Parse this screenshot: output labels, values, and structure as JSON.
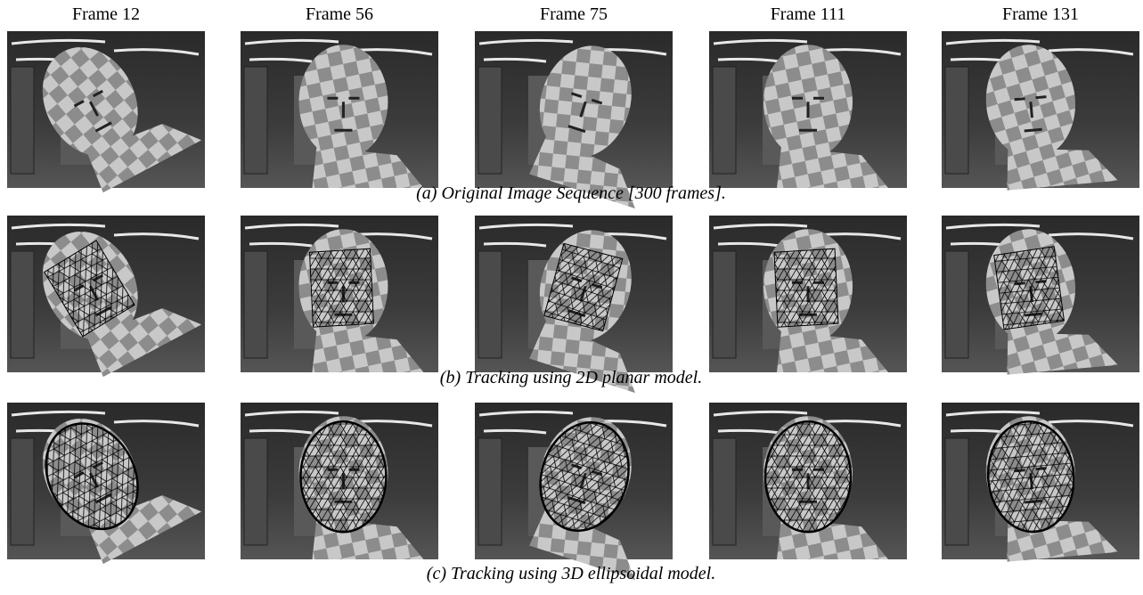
{
  "columns": [
    "Frame 12",
    "Frame 56",
    "Frame 75",
    "Frame 111",
    "Frame 131"
  ],
  "rows": [
    {
      "caption": "(a) Original Image Sequence [300 frames]."
    },
    {
      "caption": "(b) Tracking using 2D planar model."
    },
    {
      "caption": "(c) Tracking using 3D ellipsoidal model."
    }
  ]
}
